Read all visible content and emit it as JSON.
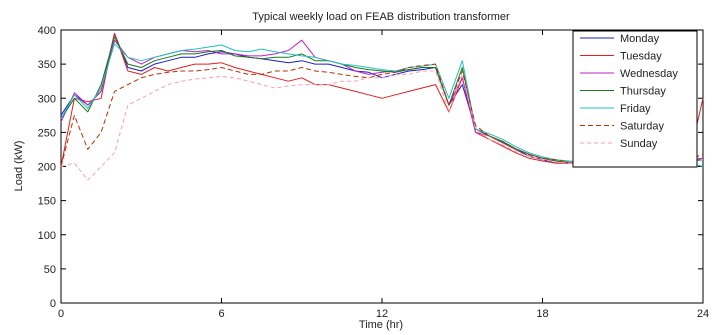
{
  "chart_data": {
    "type": "line",
    "title": "Typical weekly load on FEAB distribution transformer",
    "xlabel": "Time (hr)",
    "ylabel": "Load (kW)",
    "xlim": [
      0,
      24
    ],
    "ylim": [
      0,
      400
    ],
    "xticks": [
      0,
      6,
      12,
      18,
      24
    ],
    "yticks": [
      0,
      50,
      100,
      150,
      200,
      250,
      300,
      350,
      400
    ],
    "grid": false,
    "legend_position": "top-right",
    "x": [
      0,
      0.5,
      1,
      1.5,
      2,
      2.5,
      3,
      3.5,
      4,
      4.5,
      5,
      5.5,
      6,
      6.5,
      7,
      7.5,
      8,
      8.5,
      9,
      9.5,
      10,
      10.5,
      11,
      11.5,
      12,
      12.5,
      13,
      13.5,
      14,
      14.5,
      15,
      15.5,
      16,
      16.5,
      17,
      17.5,
      18,
      18.5,
      19,
      19.5,
      20,
      20.5,
      21,
      21.5,
      22,
      22.5,
      23,
      23.5,
      24
    ],
    "series": [
      {
        "name": "Monday",
        "color": "#1c1cc8",
        "dash": "solid",
        "values": [
          275,
          305,
          290,
          310,
          395,
          345,
          340,
          350,
          355,
          360,
          360,
          365,
          368,
          365,
          360,
          358,
          355,
          352,
          355,
          350,
          350,
          345,
          340,
          338,
          330,
          335,
          340,
          342,
          345,
          290,
          320,
          255,
          245,
          235,
          225,
          215,
          210,
          205,
          205,
          205,
          207,
          205,
          202,
          203,
          205,
          210,
          212,
          208,
          210
        ]
      },
      {
        "name": "Tuesday",
        "color": "#e02020",
        "dash": "solid",
        "values": [
          200,
          300,
          295,
          300,
          395,
          340,
          335,
          345,
          340,
          345,
          350,
          350,
          352,
          345,
          340,
          335,
          330,
          325,
          330,
          320,
          320,
          315,
          310,
          305,
          300,
          305,
          310,
          315,
          320,
          280,
          330,
          250,
          240,
          230,
          220,
          212,
          208,
          205,
          205,
          206,
          205,
          205,
          203,
          203,
          205,
          208,
          210,
          215,
          300
        ]
      },
      {
        "name": "Wednesday",
        "color": "#c020c8",
        "dash": "solid",
        "values": [
          265,
          308,
          290,
          310,
          385,
          360,
          350,
          360,
          365,
          370,
          368,
          370,
          365,
          365,
          362,
          362,
          365,
          370,
          385,
          360,
          355,
          350,
          340,
          335,
          338,
          340,
          342,
          345,
          345,
          290,
          330,
          250,
          245,
          236,
          226,
          218,
          212,
          208,
          206,
          206,
          205,
          206,
          205,
          205,
          207,
          205,
          208,
          210,
          212
        ]
      },
      {
        "name": "Thursday",
        "color": "#1a7a1a",
        "dash": "solid",
        "values": [
          270,
          300,
          280,
          320,
          390,
          350,
          345,
          355,
          360,
          365,
          365,
          368,
          370,
          362,
          360,
          358,
          360,
          360,
          365,
          355,
          355,
          350,
          345,
          342,
          340,
          338,
          342,
          345,
          345,
          290,
          345,
          255,
          245,
          237,
          226,
          218,
          212,
          208,
          206,
          205,
          206,
          205,
          205,
          205,
          205,
          208,
          212,
          210,
          210
        ]
      },
      {
        "name": "Friday",
        "color": "#20c0c0",
        "dash": "solid",
        "values": [
          270,
          305,
          285,
          315,
          380,
          360,
          355,
          360,
          365,
          370,
          372,
          375,
          378,
          370,
          368,
          372,
          368,
          365,
          362,
          360,
          355,
          350,
          348,
          345,
          342,
          340,
          345,
          347,
          350,
          300,
          355,
          255,
          248,
          240,
          229,
          220,
          214,
          210,
          208,
          207,
          205,
          206,
          205,
          206,
          205,
          204,
          205,
          205,
          200
        ]
      },
      {
        "name": "Saturday",
        "color": "#b83000",
        "dash": "5,3",
        "values": [
          200,
          275,
          225,
          250,
          310,
          320,
          330,
          335,
          338,
          340,
          340,
          342,
          345,
          340,
          335,
          335,
          340,
          340,
          345,
          340,
          338,
          335,
          332,
          330,
          335,
          338,
          345,
          348,
          350,
          290,
          340,
          260,
          245,
          235,
          225,
          217,
          212,
          210,
          206,
          206,
          205,
          206,
          203,
          205,
          205,
          206,
          208,
          210,
          218
        ]
      },
      {
        "name": "Sunday",
        "color": "#ff9ab0",
        "dash": "4,3",
        "values": [
          200,
          205,
          180,
          200,
          220,
          290,
          300,
          310,
          320,
          325,
          328,
          330,
          332,
          330,
          325,
          320,
          315,
          318,
          320,
          320,
          320,
          325,
          325,
          330,
          330,
          335,
          335,
          340,
          340,
          280,
          335,
          255,
          240,
          232,
          222,
          215,
          210,
          207,
          205,
          205,
          205,
          205,
          204,
          205,
          205,
          207,
          206,
          209,
          210
        ]
      }
    ]
  }
}
